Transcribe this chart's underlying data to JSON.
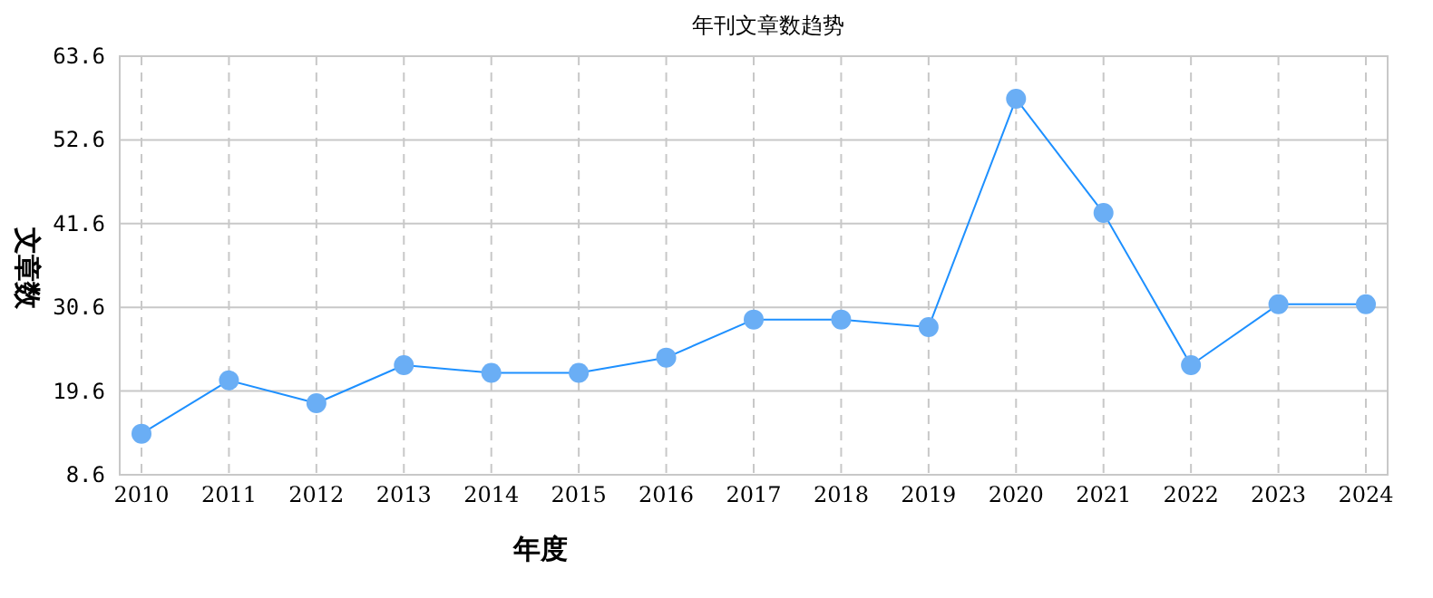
{
  "chart_data": {
    "type": "line",
    "title": "年刊文章数趋势",
    "xlabel": "年度",
    "ylabel": "文章数",
    "categories": [
      "2010",
      "2011",
      "2012",
      "2013",
      "2014",
      "2015",
      "2016",
      "2017",
      "2018",
      "2019",
      "2020",
      "2021",
      "2022",
      "2023",
      "2024"
    ],
    "series": [
      {
        "color": "#1e90ff",
        "values": [
          14,
          21,
          18,
          23,
          22,
          22,
          24,
          29,
          29,
          28,
          58,
          43,
          23,
          31,
          31
        ]
      }
    ],
    "ylim": [
      8.6,
      63.6
    ],
    "yticks": [
      8.6,
      19.6,
      30.6,
      41.6,
      52.6,
      63.6
    ],
    "grid": true,
    "marker": "circle",
    "line_style": "solid"
  }
}
